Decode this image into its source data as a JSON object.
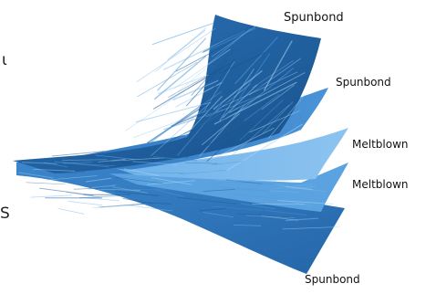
{
  "labels": {
    "top": "Spunbond",
    "upper_mid": "Spunbond",
    "meltblown_1": "Meltblown",
    "meltblown_2": "Meltblown",
    "bottom": "Spunbond"
  },
  "edge_text": {
    "upper": "ι",
    "lower": "S"
  },
  "colors": {
    "fiber_dark": "#1f5f9e",
    "fiber_mid": "#3a83c8",
    "fiber_light": "#6fb0e6",
    "meltblown_sheet": "#5da6e3",
    "background": "#ffffff"
  }
}
